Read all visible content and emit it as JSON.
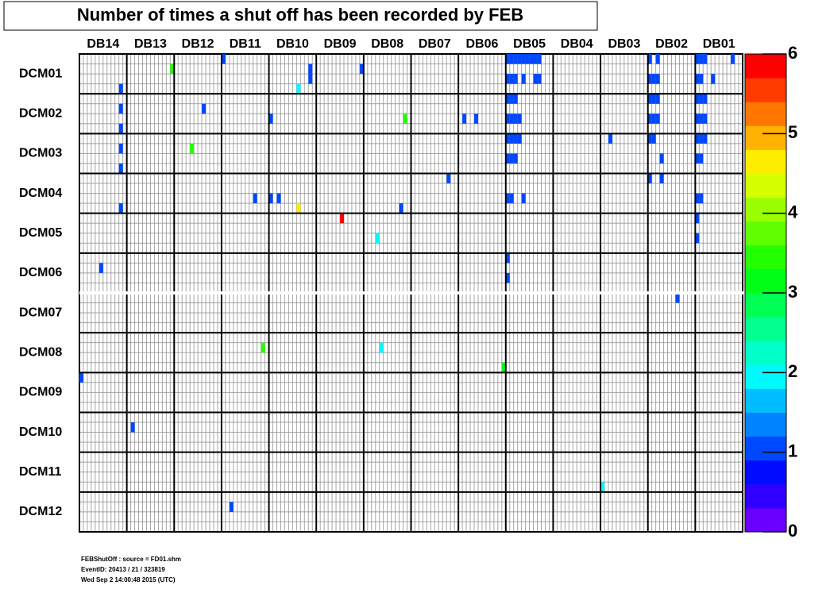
{
  "chart_data": {
    "type": "heatmap",
    "title": "Number of times a shut off has been recorded by FEB",
    "x_categories": [
      "DB14",
      "DB13",
      "DB12",
      "DB11",
      "DB10",
      "DB09",
      "DB08",
      "DB07",
      "DB06",
      "DB05",
      "DB04",
      "DB03",
      "DB02",
      "DB01"
    ],
    "y_categories": [
      "DCM01",
      "DCM02",
      "DCM03",
      "DCM04",
      "DCM05",
      "DCM06",
      "DCM07",
      "DCM08",
      "DCM09",
      "DCM10",
      "DCM11",
      "DCM12"
    ],
    "xlim": [
      0,
      168
    ],
    "ylim": [
      0,
      48
    ],
    "zlim": [
      0,
      6
    ],
    "zticks": [
      0,
      1,
      2,
      3,
      4,
      5,
      6
    ],
    "cells": [
      [
        108,
        0,
        1
      ],
      [
        109,
        0,
        1
      ],
      [
        110,
        0,
        1
      ],
      [
        111,
        0,
        1
      ],
      [
        112,
        0,
        1
      ],
      [
        113,
        0,
        1
      ],
      [
        114,
        0,
        1
      ],
      [
        115,
        0,
        1
      ],
      [
        116,
        0,
        1
      ],
      [
        144,
        0,
        1
      ],
      [
        146,
        0,
        1
      ],
      [
        156,
        0,
        1
      ],
      [
        157,
        0,
        1
      ],
      [
        158,
        0,
        1
      ],
      [
        165,
        0,
        1
      ],
      [
        36,
        0,
        1
      ],
      [
        108,
        2,
        1
      ],
      [
        109,
        2,
        1
      ],
      [
        110,
        2,
        1
      ],
      [
        112,
        2,
        1
      ],
      [
        115,
        2,
        1
      ],
      [
        116,
        2,
        1
      ],
      [
        144,
        2,
        1
      ],
      [
        145,
        2,
        1
      ],
      [
        146,
        2,
        1
      ],
      [
        156,
        2,
        1
      ],
      [
        157,
        2,
        1
      ],
      [
        160,
        2,
        1
      ],
      [
        58,
        1,
        1
      ],
      [
        58,
        2,
        1
      ],
      [
        71,
        1,
        1
      ],
      [
        10,
        3,
        1
      ],
      [
        23,
        1,
        3.5
      ],
      [
        55,
        3,
        2
      ],
      [
        108,
        4,
        1
      ],
      [
        109,
        4,
        1
      ],
      [
        110,
        4,
        1
      ],
      [
        144,
        4,
        1
      ],
      [
        145,
        4,
        1
      ],
      [
        146,
        4,
        1
      ],
      [
        156,
        4,
        1
      ],
      [
        157,
        4,
        1
      ],
      [
        158,
        4,
        1
      ],
      [
        108,
        6,
        1
      ],
      [
        109,
        6,
        1
      ],
      [
        110,
        6,
        1
      ],
      [
        111,
        6,
        1
      ],
      [
        144,
        6,
        1
      ],
      [
        145,
        6,
        1
      ],
      [
        146,
        6,
        1
      ],
      [
        156,
        6,
        1
      ],
      [
        157,
        6,
        1
      ],
      [
        158,
        6,
        1
      ],
      [
        10,
        5,
        1
      ],
      [
        10,
        7,
        1
      ],
      [
        31,
        5,
        1
      ],
      [
        48,
        6,
        1
      ],
      [
        82,
        6,
        3.5
      ],
      [
        97,
        6,
        1
      ],
      [
        100,
        6,
        1
      ],
      [
        108,
        8,
        1
      ],
      [
        109,
        8,
        1
      ],
      [
        110,
        8,
        1
      ],
      [
        111,
        8,
        1
      ],
      [
        108,
        10,
        1
      ],
      [
        109,
        10,
        1
      ],
      [
        110,
        10,
        1
      ],
      [
        134,
        8,
        1
      ],
      [
        144,
        8,
        1
      ],
      [
        145,
        8,
        1
      ],
      [
        147,
        10,
        1
      ],
      [
        156,
        8,
        1
      ],
      [
        157,
        8,
        1
      ],
      [
        158,
        8,
        1
      ],
      [
        156,
        10,
        1
      ],
      [
        157,
        10,
        1
      ],
      [
        10,
        9,
        1
      ],
      [
        10,
        11,
        1
      ],
      [
        28,
        9,
        3.5
      ],
      [
        44,
        14,
        1
      ],
      [
        48,
        14,
        1
      ],
      [
        50,
        14,
        1
      ],
      [
        55,
        15,
        4.5
      ],
      [
        81,
        15,
        1
      ],
      [
        93,
        12,
        1
      ],
      [
        108,
        14,
        1
      ],
      [
        109,
        14,
        1
      ],
      [
        112,
        14,
        1
      ],
      [
        144,
        12,
        1
      ],
      [
        147,
        12,
        1
      ],
      [
        156,
        14,
        1
      ],
      [
        157,
        14,
        1
      ],
      [
        10,
        15,
        1
      ],
      [
        66,
        16,
        6
      ],
      [
        75,
        18,
        2
      ],
      [
        156,
        16,
        1
      ],
      [
        156,
        18,
        1
      ],
      [
        5,
        21,
        1
      ],
      [
        108,
        20,
        1
      ],
      [
        108,
        22,
        1
      ],
      [
        151,
        24,
        1
      ],
      [
        46,
        29,
        3.5
      ],
      [
        76,
        29,
        2
      ],
      [
        107,
        31,
        3
      ],
      [
        0,
        32,
        1
      ],
      [
        13,
        37,
        1
      ],
      [
        132,
        43,
        2
      ],
      [
        38,
        45,
        1
      ]
    ],
    "notes": [
      "FEBShutOff : source = FD01.shm",
      "EventID: 20413 / 21 / 323819",
      "Wed Sep  2 14:00:48 2015 (UTC)"
    ]
  }
}
